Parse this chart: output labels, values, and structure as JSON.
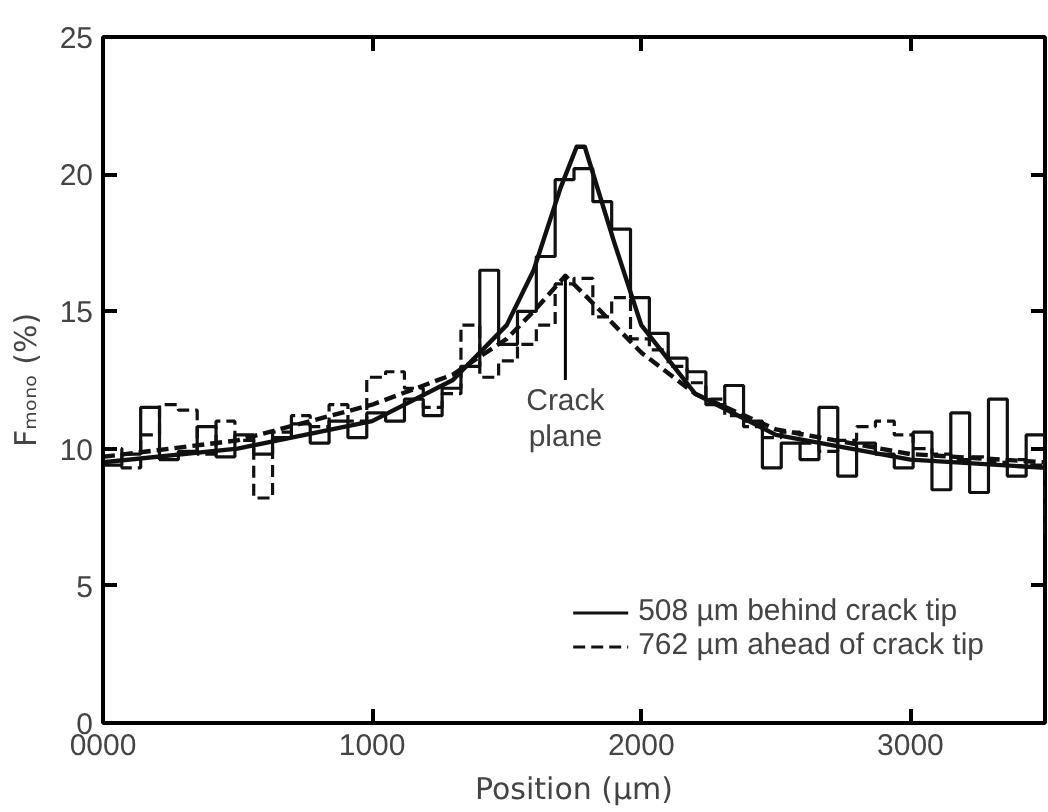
{
  "chart_data": {
    "type": "step",
    "xlabel": "Position (µm)",
    "ylabel": "Fₘₒₙₒ (%)",
    "xlim": [
      0,
      3500
    ],
    "ylim": [
      0,
      25
    ],
    "xticks": [
      {
        "value": 0,
        "label": "0000"
      },
      1000,
      2000,
      3000
    ],
    "yticks": [
      0,
      5,
      10,
      15,
      20,
      25
    ],
    "grid": false,
    "legend": "bottom right",
    "annotations": [
      {
        "text": "Crack plane",
        "x": 1718,
        "y": 16.3
      }
    ],
    "series": [
      {
        "name": "508 µm behind crack tip",
        "line_style": "solid",
        "color": "#111111",
        "x": [
          0,
          70,
          140,
          210,
          280,
          350,
          420,
          490,
          560,
          630,
          700,
          770,
          840,
          910,
          980,
          1050,
          1120,
          1190,
          1260,
          1330,
          1400,
          1470,
          1540,
          1610,
          1680,
          1750,
          1820,
          1890,
          1960,
          2030,
          2100,
          2170,
          2240,
          2310,
          2380,
          2450,
          2520,
          2590,
          2660,
          2730,
          2800,
          2870,
          2940,
          3010,
          3080,
          3150,
          3220,
          3290,
          3360,
          3430,
          3500
        ],
        "values": [
          9.4,
          9.8,
          11.5,
          9.6,
          9.9,
          10.8,
          9.7,
          10.5,
          9.8,
          10.4,
          10.9,
          10.2,
          11.0,
          10.4,
          11.3,
          11.0,
          11.8,
          11.2,
          12.2,
          13.0,
          16.5,
          13.8,
          15.0,
          17.0,
          19.8,
          20.2,
          19.0,
          18.0,
          15.5,
          14.2,
          13.3,
          12.8,
          11.6,
          12.3,
          11.0,
          9.3,
          10.2,
          9.6,
          11.5,
          9.0,
          10.2,
          9.8,
          9.3,
          10.6,
          8.5,
          11.3,
          8.4,
          11.8,
          9.0,
          10.5,
          9.2
        ]
      },
      {
        "name": "762 µm ahead of crack tip",
        "line_style": "dashed",
        "color": "#111111",
        "x": [
          0,
          70,
          140,
          210,
          280,
          350,
          420,
          490,
          560,
          630,
          700,
          770,
          840,
          910,
          980,
          1050,
          1120,
          1190,
          1260,
          1330,
          1400,
          1470,
          1540,
          1610,
          1680,
          1750,
          1820,
          1890,
          1960,
          2030,
          2100,
          2170,
          2240,
          2310,
          2380,
          2450,
          2520,
          2590,
          2660,
          2730,
          2800,
          2870,
          2940,
          3010,
          3080,
          3150,
          3220,
          3290,
          3360,
          3430,
          3500
        ],
        "values": [
          10.0,
          9.3,
          10.5,
          11.6,
          11.4,
          9.8,
          11.0,
          10.3,
          8.2,
          10.6,
          11.2,
          10.8,
          11.6,
          11.0,
          12.6,
          12.8,
          12.2,
          11.5,
          12.0,
          14.5,
          12.6,
          13.2,
          13.8,
          14.5,
          16.0,
          16.2,
          14.8,
          15.5,
          14.0,
          13.6,
          13.0,
          12.4,
          11.8,
          11.2,
          10.8,
          10.4,
          10.6,
          10.2,
          9.9,
          10.3,
          10.8,
          11.0,
          10.5,
          10.0,
          9.8,
          9.6,
          9.7,
          9.5,
          9.6,
          9.4,
          6.7
        ]
      },
      {
        "type": "line",
        "line_style": "solid",
        "color": "#111111",
        "x": [
          0,
          500,
          1000,
          1300,
          1500,
          1600,
          1700,
          1760,
          1790,
          1900,
          2000,
          2200,
          2500,
          3000,
          3500
        ],
        "values": [
          9.5,
          10.0,
          11.0,
          12.5,
          14.5,
          16.5,
          19.5,
          21.0,
          21.0,
          17.5,
          14.5,
          12.0,
          10.5,
          9.6,
          9.3
        ]
      },
      {
        "type": "line",
        "line_style": "dashed",
        "color": "#111111",
        "x": [
          0,
          500,
          1000,
          1300,
          1500,
          1600,
          1718,
          1800,
          1900,
          2000,
          2200,
          2500,
          3000,
          3500
        ],
        "values": [
          9.7,
          10.3,
          11.6,
          12.7,
          14.0,
          15.0,
          16.3,
          15.5,
          14.5,
          13.5,
          12.0,
          10.7,
          9.8,
          9.5
        ]
      }
    ]
  }
}
